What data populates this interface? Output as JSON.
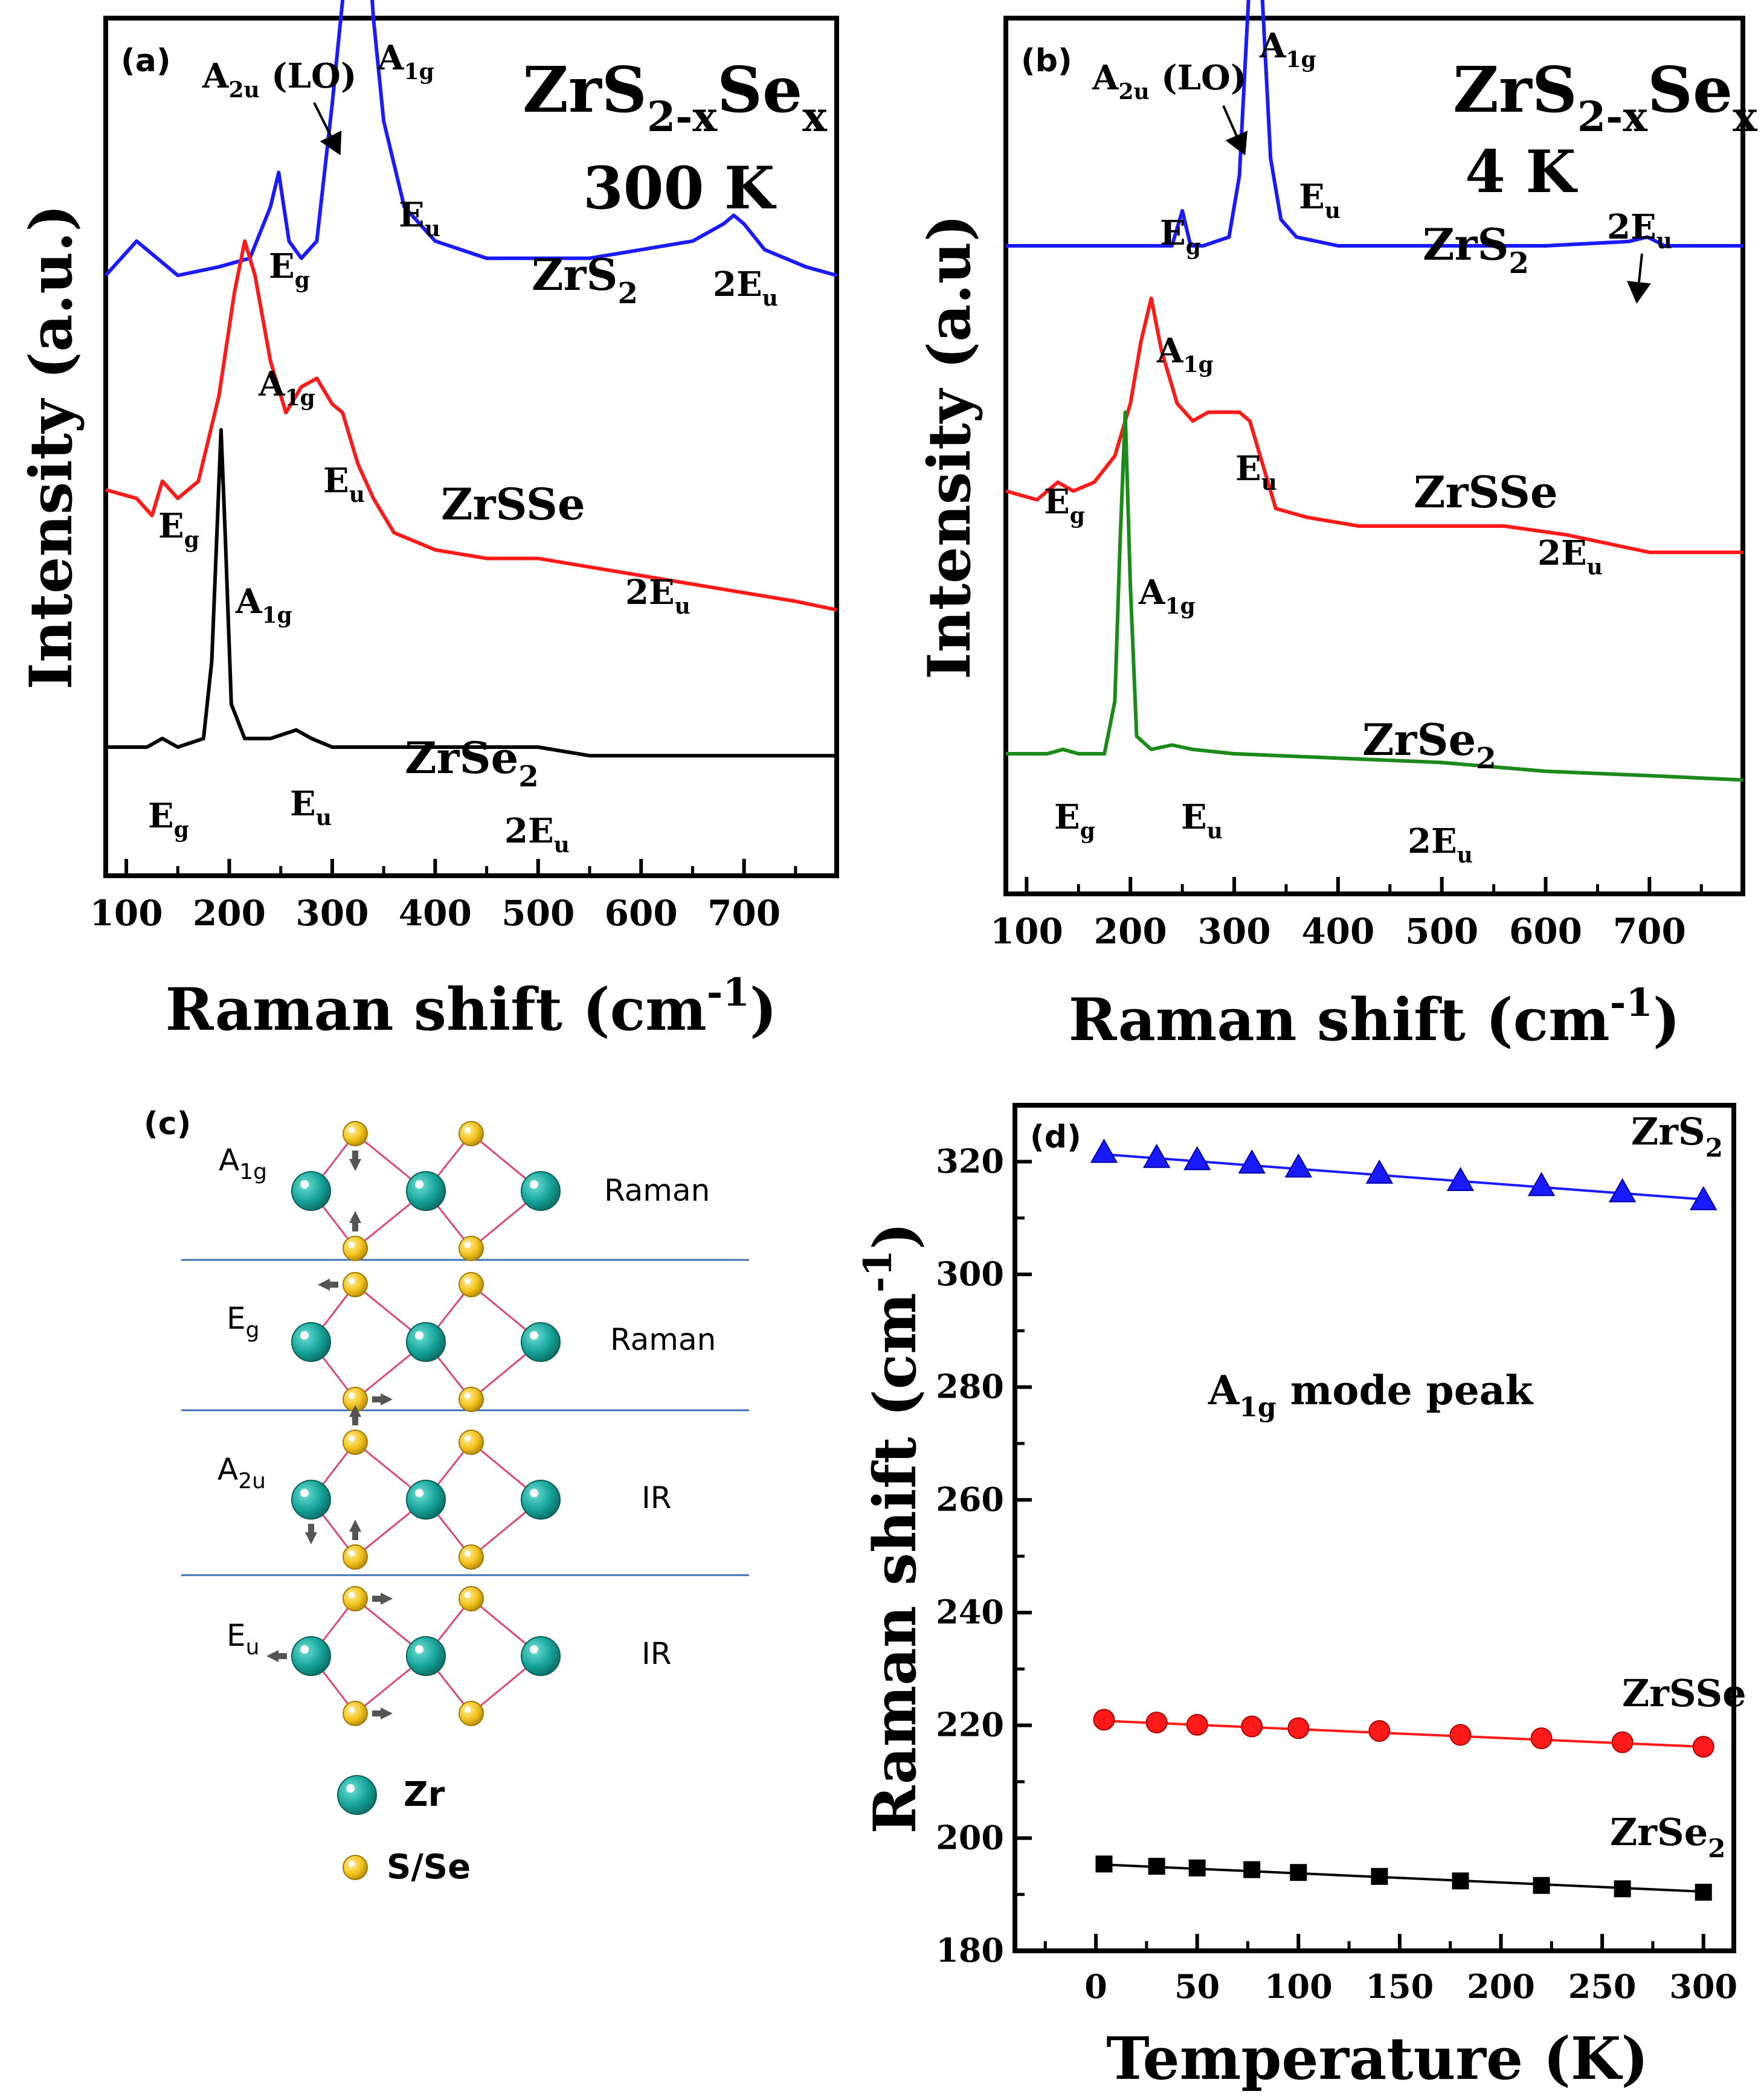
{
  "colors": {
    "blue": "#1a1aff",
    "red": "#ff1a1a",
    "black": "#000000",
    "green": "#1b8a1b",
    "teal": "#16a39a",
    "gold": "#f2c21b",
    "bond": "#e0457a",
    "divider": "#3d6fb5",
    "arrow": "#555555"
  },
  "panel_a": {
    "label": "(a)",
    "title_main": "ZrS",
    "title_sub1": "2-x",
    "title_mid": "Se",
    "title_sub2": "x",
    "temperature": "300 K",
    "ylabel": "Intensity (a.u.)",
    "xlabel_main": "Raman shift (cm",
    "xlabel_sup": "-1",
    "xlabel_end": ")",
    "xticks": [
      "100",
      "200",
      "300",
      "400",
      "500",
      "600",
      "700"
    ],
    "samples": {
      "zrs2_a": "ZrS",
      "zrs2_b": "2",
      "zrsse": "ZrSSe",
      "zrse2_a": "ZrSe",
      "zrse2_b": "2"
    },
    "peaks": {
      "a2u_a": "A",
      "a2u_b": "2u",
      "a2u_c": " (LO)",
      "a1g_a": "A",
      "a1g_b": "1g",
      "eg_a": "E",
      "eg_b": "g",
      "eu_a": "E",
      "eu_b": "u",
      "twoeu_a": "2E",
      "twoeu_b": "u"
    }
  },
  "panel_b": {
    "label": "(b)",
    "title_main": "ZrS",
    "title_sub1": "2-x",
    "title_mid": "Se",
    "title_sub2": "x",
    "temperature": "4 K",
    "ylabel": "Intensity (a.u)",
    "xlabel_main": "Raman shift (cm",
    "xlabel_sup": "-1",
    "xlabel_end": ")",
    "xticks": [
      "100",
      "200",
      "300",
      "400",
      "500",
      "600",
      "700"
    ],
    "samples": {
      "zrs2_a": "ZrS",
      "zrs2_b": "2",
      "zrsse": "ZrSSe",
      "zrse2_a": "ZrSe",
      "zrse2_b": "2"
    },
    "peaks": {
      "a2u_a": "A",
      "a2u_b": "2u",
      "a2u_c": " (LO)",
      "a1g_a": "A",
      "a1g_b": "1g",
      "eg_a": "E",
      "eg_b": "g",
      "eu_a": "E",
      "eu_b": "u",
      "twoeu_a": "2E",
      "twoeu_b": "u"
    }
  },
  "panel_c": {
    "label": "(c)",
    "modes": [
      {
        "name_a": "A",
        "name_b": "1g",
        "activity": "Raman"
      },
      {
        "name_a": "E",
        "name_b": "g",
        "activity": "Raman"
      },
      {
        "name_a": "A",
        "name_b": "2u",
        "activity": "IR"
      },
      {
        "name_a": "E",
        "name_b": "u",
        "activity": "IR"
      }
    ],
    "legend": {
      "zr": "Zr",
      "s": "S/Se"
    }
  },
  "panel_d": {
    "label": "(d)",
    "ylabel_main": "Raman shift (cm",
    "ylabel_sup": "-1",
    "ylabel_end": ")",
    "xlabel": "Temperature (K)",
    "annotation_a": "A",
    "annotation_sub": "1g",
    "annotation_b": " mode peak",
    "xticks": [
      "0",
      "50",
      "100",
      "150",
      "200",
      "250",
      "300"
    ],
    "yticks": [
      "180",
      "200",
      "220",
      "240",
      "260",
      "280",
      "300",
      "320"
    ],
    "series_labels": {
      "zrs2_a": "ZrS",
      "zrs2_b": "2",
      "zrsse": "ZrSSe",
      "zrse2_a": "ZrSe",
      "zrse2_b": "2"
    }
  },
  "chart_data": [
    {
      "type": "line",
      "panel": "a",
      "xlabel": "Raman shift (cm-1)",
      "ylabel": "Intensity (a.u.)",
      "xlim": [
        80,
        790
      ],
      "series": [
        {
          "name": "ZrS2",
          "color": "#1a1aff",
          "x": [
            80,
            110,
            150,
            190,
            220,
            240,
            248,
            258,
            270,
            285,
            300,
            310,
            318,
            330,
            340,
            350,
            370,
            400,
            450,
            500,
            550,
            600,
            650,
            680,
            690,
            700,
            720,
            760,
            790
          ],
          "y": [
            0.7,
            0.74,
            0.7,
            0.71,
            0.72,
            0.78,
            0.82,
            0.74,
            0.72,
            0.74,
            0.9,
            1.02,
            1.1,
            1.18,
            1.0,
            0.88,
            0.78,
            0.74,
            0.72,
            0.72,
            0.72,
            0.73,
            0.74,
            0.76,
            0.77,
            0.76,
            0.73,
            0.71,
            0.7
          ]
        },
        {
          "name": "ZrSSe",
          "color": "#ff1a1a",
          "x": [
            80,
            110,
            125,
            135,
            150,
            170,
            190,
            205,
            215,
            225,
            240,
            255,
            270,
            285,
            300,
            310,
            325,
            340,
            360,
            400,
            450,
            500,
            550,
            600,
            650,
            700,
            750,
            790
          ],
          "y": [
            0.45,
            0.44,
            0.42,
            0.46,
            0.44,
            0.46,
            0.56,
            0.68,
            0.74,
            0.7,
            0.6,
            0.54,
            0.57,
            0.58,
            0.55,
            0.54,
            0.48,
            0.44,
            0.4,
            0.38,
            0.37,
            0.37,
            0.36,
            0.35,
            0.34,
            0.33,
            0.32,
            0.31
          ]
        },
        {
          "name": "ZrSe2",
          "color": "#000000",
          "x": [
            80,
            120,
            135,
            150,
            175,
            183,
            188,
            192,
            196,
            202,
            215,
            240,
            265,
            280,
            300,
            350,
            400,
            450,
            500,
            550,
            600,
            650,
            700,
            750,
            790
          ],
          "y": [
            0.15,
            0.15,
            0.16,
            0.15,
            0.16,
            0.25,
            0.4,
            0.52,
            0.4,
            0.2,
            0.16,
            0.16,
            0.17,
            0.16,
            0.15,
            0.15,
            0.15,
            0.15,
            0.15,
            0.14,
            0.14,
            0.14,
            0.14,
            0.14,
            0.14
          ]
        }
      ]
    },
    {
      "type": "line",
      "panel": "b",
      "xlabel": "Raman shift (cm-1)",
      "ylabel": "Intensity (a.u)",
      "xlim": [
        80,
        790
      ],
      "series": [
        {
          "name": "ZrS2",
          "color": "#1a1aff",
          "x": [
            80,
            150,
            220,
            240,
            250,
            258,
            270,
            295,
            305,
            315,
            320,
            325,
            335,
            345,
            360,
            400,
            500,
            600,
            680,
            698,
            715,
            790
          ],
          "y": [
            0.74,
            0.74,
            0.74,
            0.74,
            0.78,
            0.74,
            0.74,
            0.75,
            0.82,
            1.05,
            1.17,
            1.07,
            0.84,
            0.77,
            0.75,
            0.74,
            0.74,
            0.74,
            0.745,
            0.75,
            0.74,
            0.74
          ]
        },
        {
          "name": "ZrSSe",
          "color": "#ff1a1a",
          "x": [
            80,
            110,
            130,
            145,
            165,
            185,
            200,
            210,
            220,
            230,
            245,
            260,
            275,
            290,
            305,
            315,
            325,
            340,
            370,
            420,
            500,
            560,
            620,
            660,
            700,
            750,
            790
          ],
          "y": [
            0.46,
            0.45,
            0.47,
            0.46,
            0.47,
            0.5,
            0.56,
            0.63,
            0.68,
            0.62,
            0.56,
            0.54,
            0.55,
            0.55,
            0.55,
            0.54,
            0.5,
            0.44,
            0.43,
            0.42,
            0.42,
            0.42,
            0.41,
            0.4,
            0.39,
            0.39,
            0.39
          ]
        },
        {
          "name": "ZrSe2",
          "color": "#1b8a1b",
          "x": [
            80,
            120,
            135,
            150,
            175,
            185,
            190,
            195,
            200,
            206,
            220,
            240,
            260,
            300,
            400,
            500,
            600,
            700,
            790
          ],
          "y": [
            0.16,
            0.16,
            0.165,
            0.16,
            0.16,
            0.22,
            0.4,
            0.55,
            0.35,
            0.18,
            0.165,
            0.17,
            0.165,
            0.16,
            0.155,
            0.15,
            0.14,
            0.135,
            0.13
          ]
        }
      ]
    },
    {
      "type": "scatter",
      "panel": "d",
      "xlabel": "Temperature (K)",
      "ylabel": "Raman shift (cm-1)",
      "xlim": [
        -40,
        315
      ],
      "ylim": [
        180,
        330
      ],
      "x": [
        4,
        30,
        50,
        77,
        100,
        140,
        180,
        220,
        260,
        300
      ],
      "series": [
        {
          "name": "ZrS2",
          "marker": "triangle",
          "color": "#1a1aff",
          "values": [
            321.5,
            320.6,
            320.2,
            319.6,
            318.9,
            317.8,
            316.5,
            315.6,
            314.5,
            313.1
          ],
          "fit": [
            321.3,
            313.3
          ]
        },
        {
          "name": "ZrSSe",
          "marker": "circle",
          "color": "#ff1a1a",
          "values": [
            221.0,
            220.5,
            220.1,
            219.8,
            219.5,
            219.0,
            218.3,
            217.7,
            217.0,
            216.2
          ],
          "fit": [
            220.8,
            216.2
          ]
        },
        {
          "name": "ZrSe2",
          "marker": "square",
          "color": "#000000",
          "values": [
            195.4,
            195.0,
            194.7,
            194.4,
            193.9,
            193.2,
            192.4,
            191.6,
            191.0,
            190.4
          ],
          "fit": [
            195.3,
            190.5
          ]
        }
      ]
    }
  ]
}
